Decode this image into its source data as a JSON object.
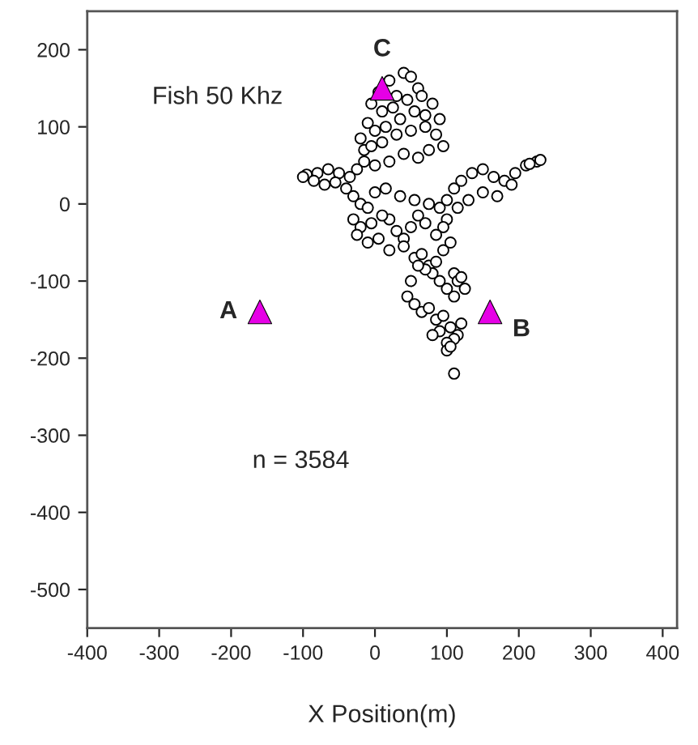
{
  "chart_data": {
    "type": "scatter",
    "xlabel": "X Position(m)",
    "xlim": [
      -400,
      420
    ],
    "ylim": [
      -550,
      250
    ],
    "xticks": [
      -400,
      -300,
      -200,
      -100,
      0,
      100,
      200,
      300,
      400
    ],
    "yticks": [
      -500,
      -400,
      -300,
      -200,
      -100,
      0,
      100,
      200
    ],
    "grid": false,
    "legend": false,
    "series": [
      {
        "marker": "circle",
        "color": "#ffffff",
        "x": [
          20,
          40,
          50,
          60,
          30,
          5,
          -5,
          10,
          25,
          45,
          65,
          80,
          90,
          70,
          55,
          35,
          15,
          0,
          -10,
          -20,
          -15,
          -5,
          10,
          30,
          50,
          70,
          85,
          95,
          75,
          60,
          40,
          20,
          0,
          -15,
          -25,
          -35,
          -50,
          -65,
          -80,
          -95,
          -100,
          -85,
          -70,
          -55,
          -40,
          -30,
          -20,
          -10,
          0,
          15,
          35,
          55,
          75,
          90,
          100,
          110,
          120,
          135,
          150,
          165,
          180,
          195,
          210,
          225,
          230,
          215,
          190,
          170,
          150,
          130,
          115,
          100,
          95,
          85,
          70,
          60,
          50,
          40,
          30,
          20,
          10,
          -5,
          -20,
          -30,
          -25,
          -10,
          5,
          20,
          40,
          55,
          65,
          75,
          85,
          95,
          105,
          110,
          115,
          120,
          125,
          110,
          100,
          90,
          80,
          70,
          60,
          50,
          45,
          55,
          65,
          75,
          85,
          95,
          105,
          115,
          120,
          110,
          100,
          90,
          80,
          100,
          105,
          110
        ],
        "values": [
          160,
          170,
          165,
          150,
          140,
          145,
          130,
          120,
          125,
          135,
          140,
          130,
          110,
          115,
          120,
          110,
          100,
          95,
          105,
          85,
          70,
          75,
          80,
          90,
          95,
          100,
          90,
          75,
          70,
          60,
          65,
          55,
          50,
          55,
          45,
          35,
          40,
          45,
          40,
          38,
          35,
          30,
          25,
          28,
          20,
          10,
          0,
          -5,
          15,
          20,
          10,
          5,
          0,
          -5,
          5,
          20,
          30,
          40,
          45,
          35,
          30,
          40,
          50,
          55,
          57,
          52,
          25,
          10,
          15,
          5,
          -5,
          -20,
          -30,
          -40,
          -25,
          -15,
          -30,
          -45,
          -35,
          -20,
          -15,
          -25,
          -30,
          -20,
          -40,
          -50,
          -45,
          -60,
          -55,
          -70,
          -65,
          -80,
          -75,
          -60,
          -50,
          -90,
          -100,
          -95,
          -110,
          -120,
          -110,
          -100,
          -90,
          -85,
          -80,
          -100,
          -120,
          -130,
          -140,
          -135,
          -150,
          -145,
          -160,
          -170,
          -155,
          -175,
          -180,
          -165,
          -170,
          -190,
          -185,
          -220
        ]
      },
      {
        "marker": "triangle",
        "color": "#e600e6",
        "x": [
          -160,
          160,
          10
        ],
        "values": [
          -140,
          -140,
          150
        ]
      }
    ],
    "annotations": [
      "Fish 50 Khz",
      "n = 3584",
      {
        "text": "A",
        "x": -160,
        "y": -140
      },
      {
        "text": "B",
        "x": 160,
        "y": -140
      },
      {
        "text": "C",
        "x": 10,
        "y": 150
      }
    ]
  }
}
